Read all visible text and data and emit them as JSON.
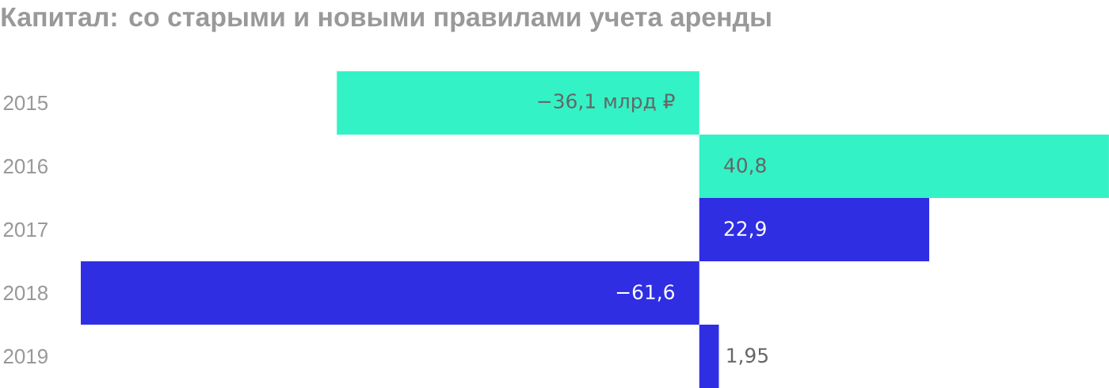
{
  "chart_data": {
    "type": "bar",
    "orientation": "horizontal",
    "title": "Капитал: со старыми и новыми правилами учета аренды",
    "categories": [
      "2015",
      "2016",
      "2017",
      "2018",
      "2019"
    ],
    "values": [
      -36.1,
      40.8,
      22.9,
      -61.6,
      1.95
    ],
    "colors": [
      "#33f2c6",
      "#33f2c6",
      "#2f2ee3",
      "#2f2ee3",
      "#2f2ee3"
    ],
    "value_labels": [
      "−36,1 млрд ₽",
      "40,8",
      "22,9",
      "−61,6",
      "1,95"
    ]
  }
}
